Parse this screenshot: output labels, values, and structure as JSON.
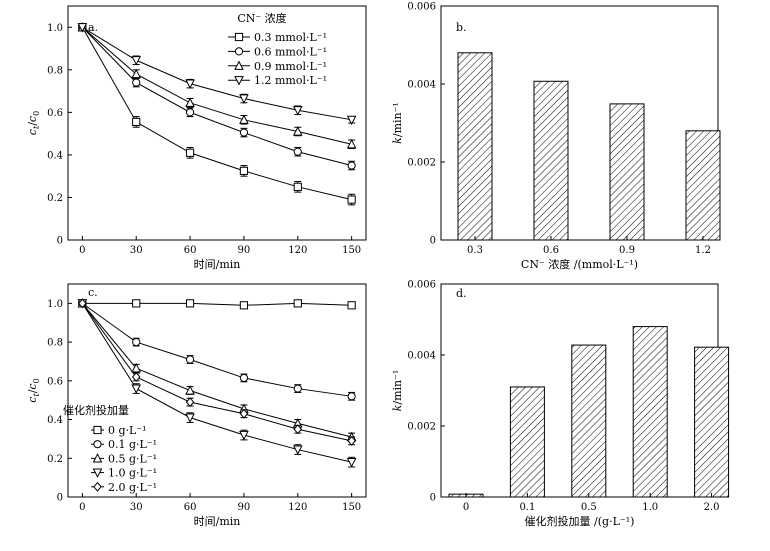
{
  "chart_data": [
    {
      "id": "a",
      "type": "line",
      "panel_label": "a.",
      "legend_title": "CN⁻ 浓度",
      "xlabel": "时间/min",
      "ylabel_main": "c",
      "ylabel_sub1": "t",
      "ylabel_sep": "/",
      "ylabel_sub2": "0",
      "x": [
        0,
        30,
        60,
        90,
        120,
        150
      ],
      "xlim": [
        -8,
        158
      ],
      "ylim": [
        0,
        1.1
      ],
      "x_ticks": [
        "0",
        "30",
        "60",
        "90",
        "120",
        "150"
      ],
      "y_ticks": [
        "0",
        "0.2",
        "0.4",
        "0.6",
        "0.8",
        "1.0"
      ],
      "series": [
        {
          "name": "0.3 mmol·L⁻¹",
          "marker": "square",
          "values": [
            1.0,
            0.555,
            0.41,
            0.325,
            0.25,
            0.19
          ],
          "errors": [
            0,
            0.025,
            0.025,
            0.025,
            0.025,
            0.025
          ]
        },
        {
          "name": "0.6 mmol·L⁻¹",
          "marker": "circle",
          "values": [
            1.0,
            0.74,
            0.6,
            0.505,
            0.415,
            0.35
          ],
          "errors": [
            0,
            0.02,
            0.02,
            0.02,
            0.02,
            0.02
          ]
        },
        {
          "name": "0.9 mmol·L⁻¹",
          "marker": "triangle-up",
          "values": [
            1.0,
            0.78,
            0.645,
            0.565,
            0.51,
            0.45
          ],
          "errors": [
            0,
            0.02,
            0.02,
            0.02,
            0.02,
            0.02
          ]
        },
        {
          "name": "1.2 mmol·L⁻¹",
          "marker": "triangle-down",
          "values": [
            1.0,
            0.845,
            0.735,
            0.665,
            0.61,
            0.565
          ],
          "errors": [
            0,
            0.02,
            0.02,
            0.02,
            0.02,
            0.015
          ]
        }
      ]
    },
    {
      "id": "b",
      "type": "bar",
      "panel_label": "b.",
      "xlabel": "CN⁻ 浓度 /(mmol·L⁻¹)",
      "ylabel": "k/min⁻¹",
      "categories": [
        "0.3",
        "0.6",
        "0.9",
        "1.2"
      ],
      "values": [
        0.0048,
        0.00407,
        0.00349,
        0.0028
      ],
      "ylim": [
        0,
        0.006
      ],
      "y_ticks": [
        "0",
        "0.002",
        "0.004",
        "0.006"
      ]
    },
    {
      "id": "c",
      "type": "line",
      "panel_label": "c.",
      "legend_title": "催化剂投加量",
      "xlabel": "时间/min",
      "ylabel_main": "c",
      "ylabel_sub1": "t",
      "ylabel_sep": "/",
      "ylabel_sub2": "0",
      "x": [
        0,
        30,
        60,
        90,
        120,
        150
      ],
      "xlim": [
        -8,
        158
      ],
      "ylim": [
        0,
        1.1
      ],
      "x_ticks": [
        "0",
        "30",
        "60",
        "90",
        "120",
        "150"
      ],
      "y_ticks": [
        "0",
        "0.2",
        "0.4",
        "0.6",
        "0.8",
        "1.0"
      ],
      "series": [
        {
          "name": "0 g·L⁻¹",
          "marker": "square",
          "values": [
            1.0,
            1.0,
            1.0,
            0.99,
            1.0,
            0.99
          ],
          "errors": [
            0,
            0.008,
            0.008,
            0.008,
            0.008,
            0.008
          ]
        },
        {
          "name": "0.1 g·L⁻¹",
          "marker": "circle",
          "values": [
            1.0,
            0.8,
            0.71,
            0.615,
            0.56,
            0.52
          ],
          "errors": [
            0,
            0.02,
            0.02,
            0.02,
            0.02,
            0.02
          ]
        },
        {
          "name": "0.5 g·L⁻¹",
          "marker": "triangle-up",
          "values": [
            1.0,
            0.665,
            0.55,
            0.455,
            0.38,
            0.31
          ],
          "errors": [
            0,
            0.02,
            0.02,
            0.02,
            0.02,
            0.02
          ]
        },
        {
          "name": "1.0 g·L⁻¹",
          "marker": "triangle-down",
          "values": [
            1.0,
            0.56,
            0.41,
            0.32,
            0.245,
            0.18
          ],
          "errors": [
            0,
            0.025,
            0.025,
            0.025,
            0.025,
            0.025
          ]
        },
        {
          "name": "2.0 g·L⁻¹",
          "marker": "diamond",
          "values": [
            1.0,
            0.62,
            0.49,
            0.43,
            0.35,
            0.29
          ],
          "errors": [
            0,
            0.02,
            0.02,
            0.02,
            0.02,
            0.02
          ]
        }
      ]
    },
    {
      "id": "d",
      "type": "bar",
      "panel_label": "d.",
      "xlabel": "催化剂投加量 /(g·L⁻¹)",
      "ylabel": "k/min⁻¹",
      "categories": [
        "0",
        "0.1",
        "0.5",
        "1.0",
        "2.0"
      ],
      "values": [
        8e-05,
        0.0031,
        0.00428,
        0.0048,
        0.00422
      ],
      "ylim": [
        0,
        0.006
      ],
      "y_ticks": [
        "0",
        "0.002",
        "0.004",
        "0.006"
      ]
    }
  ]
}
